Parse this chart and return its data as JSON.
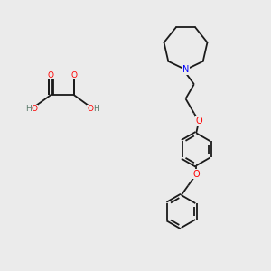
{
  "bg_color": "#ebebeb",
  "bond_color": "#1a1a1a",
  "oxygen_color": "#ff0000",
  "nitrogen_color": "#0000ff",
  "carbon_color": "#5a7a6a",
  "line_width": 1.3,
  "fig_width": 3.0,
  "fig_height": 3.0,
  "dpi": 100,
  "xlim": [
    0,
    10
  ],
  "ylim": [
    0,
    10
  ]
}
